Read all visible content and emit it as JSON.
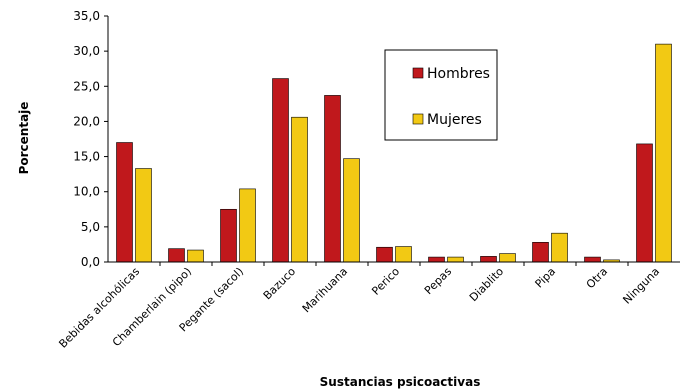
{
  "chart_data": {
    "type": "bar",
    "xlabel": "Sustancias psicoactivas",
    "ylabel": "Porcentaje",
    "ylim": [
      0,
      35
    ],
    "yticks": [
      "0,0",
      "5,0",
      "10,0",
      "15,0",
      "20,0",
      "25,0",
      "30,0",
      "35,0"
    ],
    "grid": false,
    "legend_position": "top-right",
    "categories": [
      "Bebidas alcohólicas",
      "Chamberlain (pipo)",
      "Pegante (sacol)",
      "Bazuco",
      "Marihuana",
      "Perico",
      "Pepas",
      "Diablito",
      "Pipa",
      "Otra",
      "Ninguna"
    ],
    "series": [
      {
        "name": "Hombres",
        "color": "#c0181c",
        "values": [
          17.0,
          1.9,
          7.5,
          26.1,
          23.7,
          2.1,
          0.7,
          0.8,
          2.8,
          0.7,
          16.8
        ]
      },
      {
        "name": "Mujeres",
        "color": "#f2c914",
        "values": [
          13.3,
          1.7,
          10.4,
          20.6,
          14.7,
          2.2,
          0.7,
          1.2,
          4.1,
          0.3,
          31.0
        ]
      }
    ]
  }
}
